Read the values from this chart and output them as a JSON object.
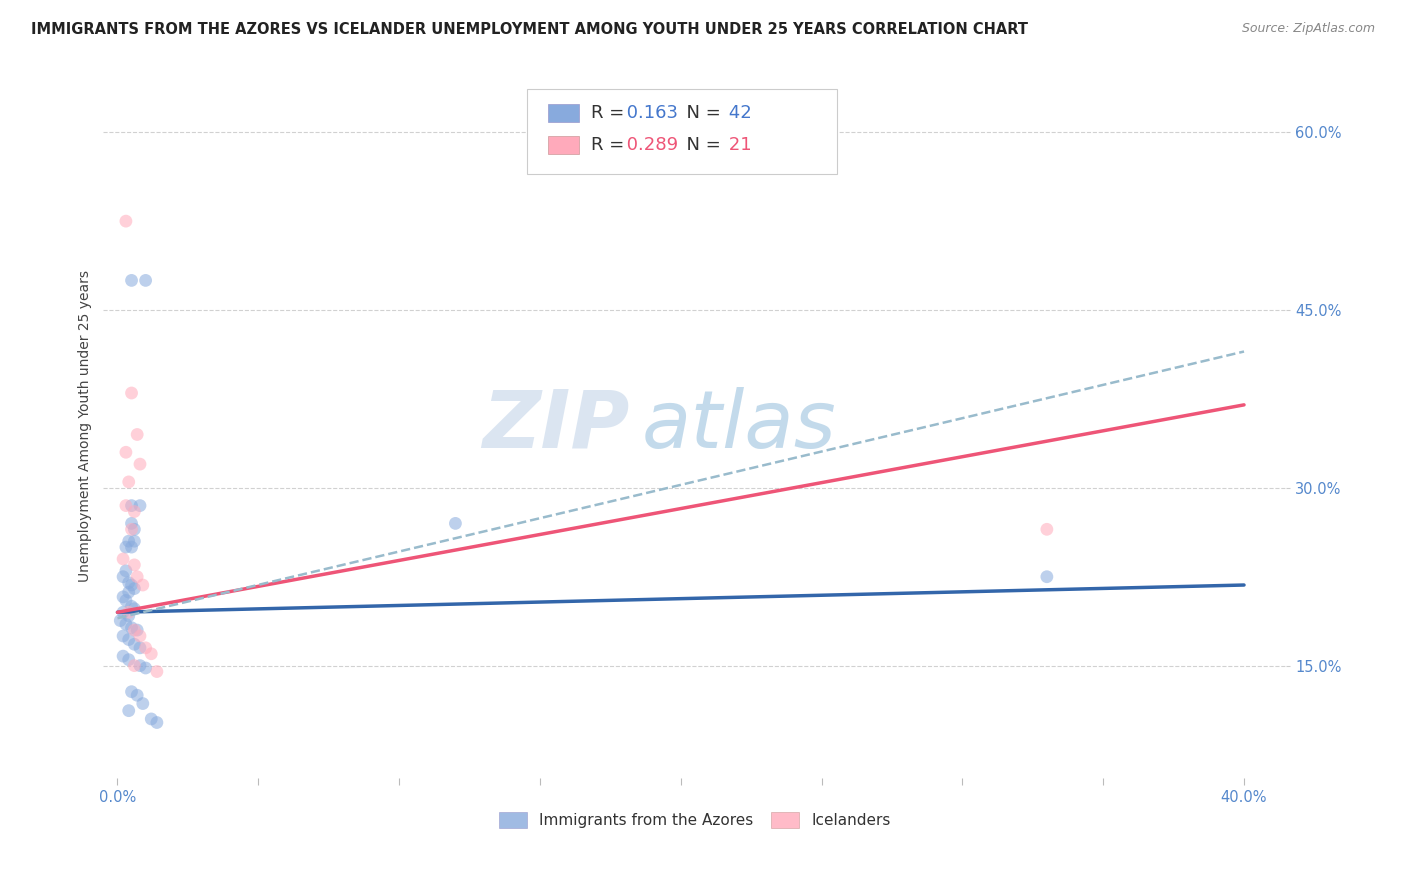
{
  "title": "IMMIGRANTS FROM THE AZORES VS ICELANDER UNEMPLOYMENT AMONG YOUTH UNDER 25 YEARS CORRELATION CHART",
  "source": "Source: ZipAtlas.com",
  "ylabel": "Unemployment Among Youth under 25 years",
  "yticks": [
    0.15,
    0.3,
    0.45,
    0.6
  ],
  "ytick_labels": [
    "15.0%",
    "30.0%",
    "45.0%",
    "60.0%"
  ],
  "xtick_labels": [
    "0.0%",
    "",
    "",
    "",
    "",
    "",
    "",
    "",
    "40.0%"
  ],
  "legend_blue_r": "0.163",
  "legend_blue_n": "42",
  "legend_pink_r": "0.289",
  "legend_pink_n": "21",
  "legend_label_blue": "Immigrants from the Azores",
  "legend_label_pink": "Icelanders",
  "blue_scatter": [
    [
      0.005,
      0.475
    ],
    [
      0.01,
      0.475
    ],
    [
      0.005,
      0.285
    ],
    [
      0.008,
      0.285
    ],
    [
      0.005,
      0.27
    ],
    [
      0.006,
      0.265
    ],
    [
      0.004,
      0.255
    ],
    [
      0.003,
      0.25
    ],
    [
      0.006,
      0.255
    ],
    [
      0.005,
      0.25
    ],
    [
      0.003,
      0.23
    ],
    [
      0.002,
      0.225
    ],
    [
      0.004,
      0.22
    ],
    [
      0.005,
      0.218
    ],
    [
      0.006,
      0.215
    ],
    [
      0.004,
      0.212
    ],
    [
      0.002,
      0.208
    ],
    [
      0.003,
      0.205
    ],
    [
      0.005,
      0.2
    ],
    [
      0.006,
      0.198
    ],
    [
      0.002,
      0.195
    ],
    [
      0.004,
      0.192
    ],
    [
      0.001,
      0.188
    ],
    [
      0.003,
      0.185
    ],
    [
      0.005,
      0.182
    ],
    [
      0.007,
      0.18
    ],
    [
      0.002,
      0.175
    ],
    [
      0.004,
      0.172
    ],
    [
      0.006,
      0.168
    ],
    [
      0.008,
      0.165
    ],
    [
      0.002,
      0.158
    ],
    [
      0.004,
      0.155
    ],
    [
      0.008,
      0.15
    ],
    [
      0.01,
      0.148
    ],
    [
      0.005,
      0.128
    ],
    [
      0.007,
      0.125
    ],
    [
      0.009,
      0.118
    ],
    [
      0.004,
      0.112
    ],
    [
      0.012,
      0.105
    ],
    [
      0.014,
      0.102
    ],
    [
      0.12,
      0.27
    ],
    [
      0.33,
      0.225
    ]
  ],
  "pink_scatter": [
    [
      0.003,
      0.525
    ],
    [
      0.005,
      0.38
    ],
    [
      0.007,
      0.345
    ],
    [
      0.003,
      0.33
    ],
    [
      0.008,
      0.32
    ],
    [
      0.004,
      0.305
    ],
    [
      0.003,
      0.285
    ],
    [
      0.006,
      0.28
    ],
    [
      0.005,
      0.265
    ],
    [
      0.002,
      0.24
    ],
    [
      0.006,
      0.235
    ],
    [
      0.007,
      0.225
    ],
    [
      0.009,
      0.218
    ],
    [
      0.004,
      0.195
    ],
    [
      0.006,
      0.18
    ],
    [
      0.008,
      0.175
    ],
    [
      0.01,
      0.165
    ],
    [
      0.012,
      0.16
    ],
    [
      0.006,
      0.15
    ],
    [
      0.014,
      0.145
    ],
    [
      0.33,
      0.265
    ]
  ],
  "blue_line": [
    [
      0.0,
      0.195
    ],
    [
      0.4,
      0.218
    ]
  ],
  "pink_line": [
    [
      0.0,
      0.195
    ],
    [
      0.4,
      0.37
    ]
  ],
  "blue_dashed_line": [
    [
      0.0,
      0.19
    ],
    [
      0.4,
      0.415
    ]
  ],
  "watermark_part1": "ZIP",
  "watermark_part2": "atlas",
  "background_color": "#ffffff",
  "scatter_alpha": 0.55,
  "scatter_size": 85,
  "blue_color": "#88aadd",
  "pink_color": "#ffaabb",
  "blue_line_color": "#3366aa",
  "pink_line_color": "#ee5577",
  "blue_dash_color": "#99bbcc",
  "grid_color": "#cccccc",
  "title_fontsize": 10.5,
  "source_fontsize": 9,
  "axis_label_fontsize": 10,
  "tick_fontsize": 10.5,
  "legend_fontsize": 13,
  "ylim": [
    0.055,
    0.65
  ],
  "xlim": [
    -0.005,
    0.415
  ]
}
